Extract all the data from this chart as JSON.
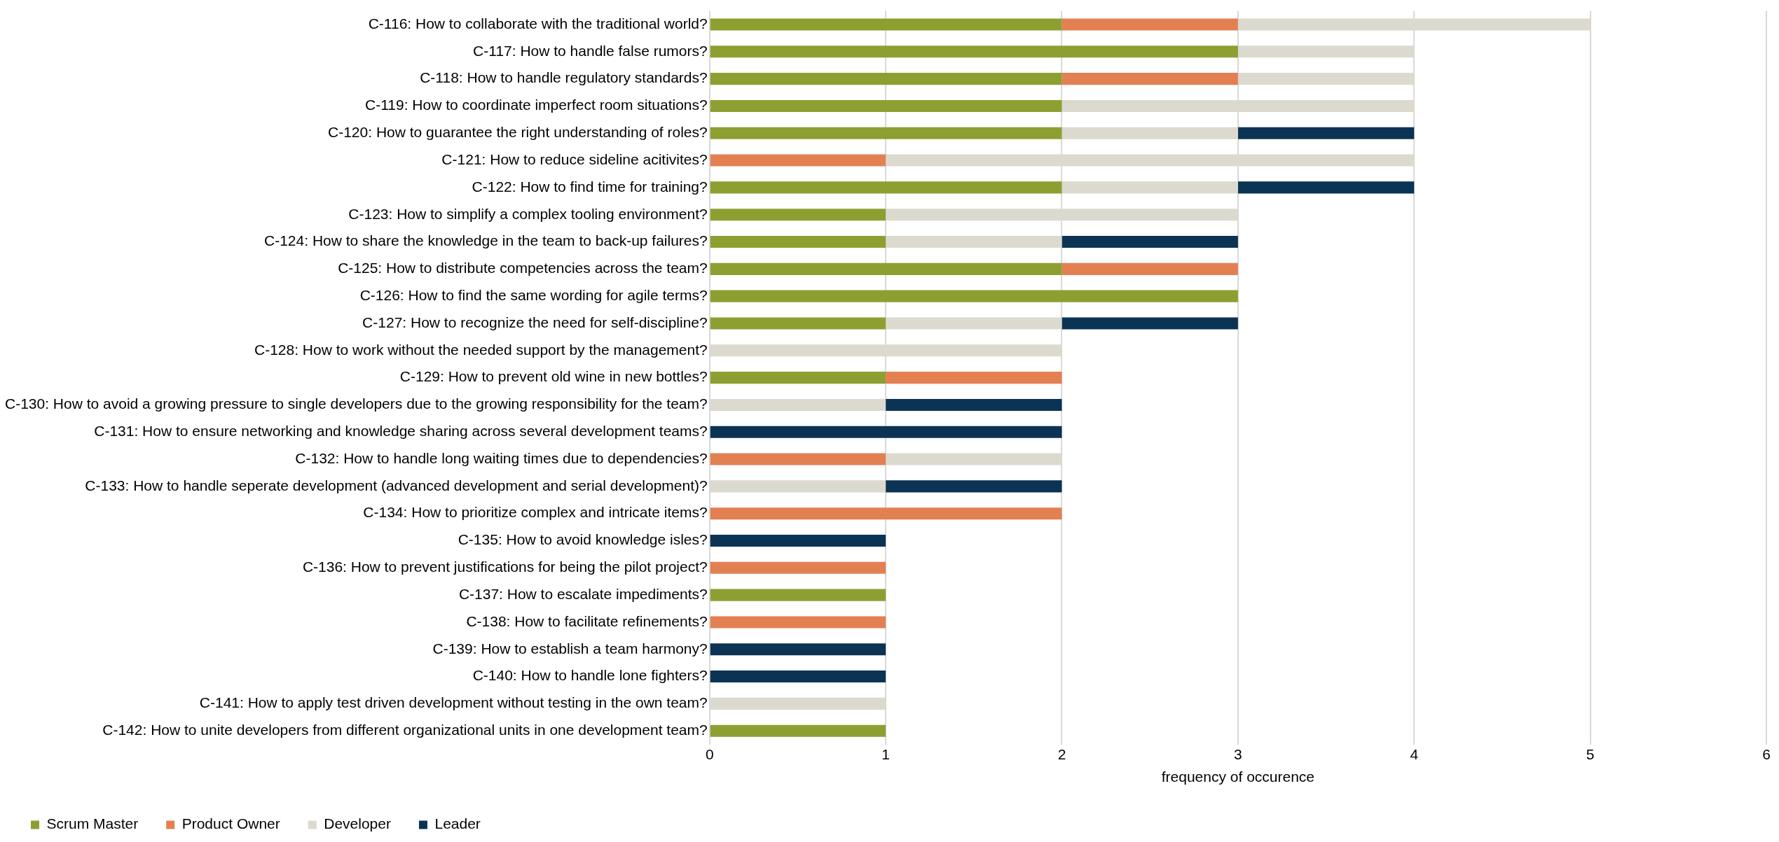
{
  "chart_data": {
    "type": "bar",
    "orientation": "horizontal",
    "stacked": true,
    "xlabel": "frequency of occurence",
    "categories": [
      "C-116: How to collaborate with the traditional world?",
      "C-117: How to handle false rumors?",
      "C-118: How to handle regulatory standards?",
      "C-119: How to coordinate imperfect room situations?",
      "C-120: How to guarantee the right understanding of roles?",
      "C-121: How to reduce sideline acitivites?",
      "C-122: How to find time for training?",
      "C-123: How to simplify a complex tooling environment?",
      "C-124: How to share the knowledge in the team to back-up failures?",
      "C-125: How to distribute competencies across the team?",
      "C-126: How to find the same wording for agile terms?",
      "C-127: How to recognize the need for self-discipline?",
      "C-128: How to work without the needed support by the management?",
      "C-129: How to prevent old wine in new bottles?",
      "C-130: How to avoid a growing pressure to single developers due to the growing responsibility for the team?",
      "C-131: How to ensure networking and knowledge sharing across several development teams?",
      "C-132: How to handle long waiting times due to dependencies?",
      "C-133: How to handle seperate development (advanced development and serial development)?",
      "C-134: How to prioritize complex and intricate items?",
      "C-135: How to avoid knowledge isles?",
      "C-136: How to prevent justifications for being the pilot project?",
      "C-137: How to escalate impediments?",
      "C-138: How to facilitate refinements?",
      "C-139: How to establish a team harmony?",
      "C-140: How to handle lone fighters?",
      "C-141: How to apply test driven development without testing in the own team?",
      "C-142: How to unite developers from different organizational units in one development team?"
    ],
    "series": [
      {
        "name": "Scrum Master",
        "color": "#8e9f32",
        "values": [
          2,
          3,
          2,
          2,
          2,
          0,
          2,
          1,
          1,
          2,
          3,
          1,
          0,
          1,
          0,
          0,
          0,
          0,
          0,
          0,
          0,
          1,
          0,
          0,
          0,
          0,
          1
        ]
      },
      {
        "name": "Product Owner",
        "color": "#e38052",
        "values": [
          1,
          0,
          1,
          0,
          0,
          1,
          0,
          0,
          0,
          1,
          0,
          0,
          0,
          1,
          0,
          0,
          1,
          0,
          2,
          0,
          1,
          0,
          1,
          0,
          0,
          0,
          0
        ]
      },
      {
        "name": "Developer",
        "color": "#dcd9ce",
        "values": [
          2,
          1,
          1,
          2,
          1,
          3,
          1,
          2,
          1,
          0,
          0,
          1,
          2,
          0,
          1,
          0,
          1,
          1,
          0,
          0,
          0,
          0,
          0,
          0,
          0,
          1,
          0
        ]
      },
      {
        "name": "Leader",
        "color": "#0b3354",
        "values": [
          0,
          0,
          0,
          0,
          1,
          0,
          1,
          0,
          1,
          0,
          0,
          1,
          0,
          0,
          1,
          2,
          0,
          1,
          0,
          1,
          0,
          0,
          0,
          1,
          1,
          0,
          0
        ]
      }
    ],
    "xlim": [
      0,
      6
    ],
    "xticks": [
      0,
      1,
      2,
      3,
      4,
      5,
      6
    ],
    "grid": "x",
    "legend": "bottom left"
  }
}
